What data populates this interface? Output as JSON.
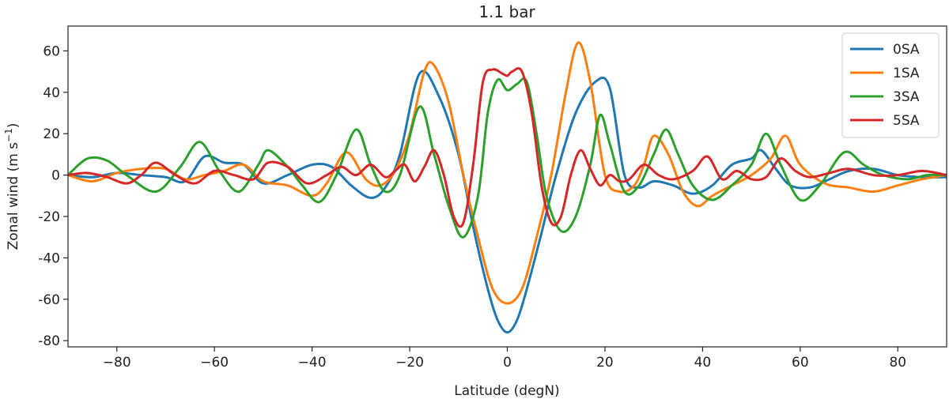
{
  "chart_data": {
    "type": "line",
    "title": "1.1 bar",
    "xlabel": "Latitude (degN)",
    "ylabel_main": "Zonal wind (m s",
    "ylabel_sup": "−1",
    "ylabel_close": ")",
    "xlim": [
      -90,
      90
    ],
    "ylim": [
      -83,
      72
    ],
    "xticks": [
      -80,
      -60,
      -40,
      -20,
      0,
      20,
      40,
      60,
      80
    ],
    "xtick_labels": [
      "−80",
      "−60",
      "−40",
      "−20",
      "0",
      "20",
      "40",
      "60",
      "80"
    ],
    "yticks": [
      -80,
      -60,
      -40,
      -20,
      0,
      20,
      40,
      60
    ],
    "ytick_labels": [
      "-80",
      "-60",
      "-40",
      "-20",
      "0",
      "20",
      "40",
      "60"
    ],
    "grid": false,
    "legend_position": "top-right",
    "series": [
      {
        "name": "0SA",
        "color": "#1f77b4",
        "x": [
          -90,
          -85,
          -80,
          -75,
          -70,
          -66,
          -62,
          -58,
          -54,
          -50,
          -45,
          -40,
          -36,
          -32,
          -28,
          -25,
          -22,
          -18,
          -14,
          -10,
          -7,
          -4,
          -2,
          0,
          2,
          4,
          7,
          10,
          14,
          18,
          21,
          24,
          27,
          30,
          34,
          38,
          42,
          46,
          50,
          52,
          55,
          58,
          62,
          66,
          70,
          75,
          80,
          85,
          90
        ],
        "y": [
          0,
          -1,
          1,
          0,
          -1,
          -3,
          9,
          6,
          5,
          -4,
          0,
          5,
          4,
          -5,
          -11,
          -6,
          10,
          49,
          38,
          10,
          -25,
          -55,
          -70,
          -76,
          -70,
          -55,
          -28,
          0,
          30,
          45,
          42,
          0,
          -6,
          -3,
          -5,
          -9,
          -5,
          5,
          8,
          12,
          3,
          -5,
          -6,
          -2,
          2,
          3,
          0,
          -1,
          -1
        ]
      },
      {
        "name": "1SA",
        "color": "#ff7f0e",
        "x": [
          -90,
          -85,
          -80,
          -75,
          -70,
          -66,
          -62,
          -58,
          -54,
          -50,
          -45,
          -40,
          -37,
          -33,
          -29,
          -26,
          -23,
          -20,
          -17,
          -15,
          -12,
          -9,
          -6,
          -3,
          0,
          3,
          6,
          9,
          12,
          14.5,
          17,
          20,
          23,
          26,
          28,
          30,
          33,
          36,
          39,
          42,
          46,
          50,
          54,
          57,
          60,
          65,
          70,
          75,
          80,
          85,
          90
        ],
        "y": [
          0,
          -3,
          1,
          3,
          3,
          -2,
          0,
          2,
          5,
          -3,
          -5,
          -10,
          -4,
          11,
          -2,
          -5,
          2,
          20,
          50,
          53,
          35,
          0,
          -30,
          -55,
          -62,
          -55,
          -30,
          0,
          40,
          64,
          45,
          0,
          -8,
          -5,
          5,
          19,
          10,
          -8,
          -15,
          -10,
          -5,
          0,
          8,
          19,
          5,
          -4,
          -6,
          -8,
          -5,
          -2,
          0
        ]
      },
      {
        "name": "3SA",
        "color": "#2ca02c",
        "x": [
          -90,
          -86,
          -82,
          -78,
          -72,
          -67,
          -63,
          -59,
          -55,
          -51,
          -49,
          -45,
          -42,
          -38.5,
          -35,
          -31,
          -28,
          -25,
          -22,
          -18,
          -15,
          -12,
          -9,
          -6,
          -4,
          -2,
          0,
          2,
          4,
          6,
          8,
          11,
          14,
          17,
          19,
          21,
          24,
          27,
          30,
          32.5,
          35,
          38,
          42,
          46,
          50,
          53,
          56,
          60,
          64,
          69,
          73,
          77,
          82,
          86,
          90
        ],
        "y": [
          0,
          8,
          7,
          0,
          -8,
          4,
          16,
          2,
          -8,
          5,
          12,
          4,
          -5,
          -13,
          0,
          22,
          5,
          -8,
          0,
          33,
          10,
          -15,
          -30,
          -10,
          30,
          46,
          41,
          44,
          45,
          20,
          -10,
          -27,
          -20,
          5,
          29,
          15,
          -8,
          -5,
          10,
          22,
          10,
          -5,
          -12,
          -5,
          5,
          20,
          5,
          -12,
          -5,
          11,
          5,
          0,
          -2,
          0,
          0
        ]
      },
      {
        "name": "5SA",
        "color": "#d62728",
        "x": [
          -90,
          -86,
          -82,
          -78,
          -75,
          -72,
          -68,
          -64,
          -60,
          -56,
          -52,
          -49,
          -45,
          -41,
          -37,
          -34,
          -31,
          -28,
          -25,
          -23,
          -21,
          -19,
          -17,
          -15,
          -13,
          -11,
          -9,
          -7,
          -5,
          -3,
          -1,
          0,
          1,
          3,
          5,
          7,
          9,
          11,
          13,
          15,
          17,
          19,
          21,
          23,
          25,
          28,
          31,
          34,
          38,
          41,
          44,
          47,
          50,
          53,
          56,
          59,
          62,
          66,
          70,
          75,
          80,
          85,
          90
        ],
        "y": [
          0,
          1,
          -1,
          -4,
          0,
          6,
          0,
          -4,
          2,
          0,
          -2,
          6,
          4,
          -4,
          0,
          4,
          0,
          5,
          -1,
          2,
          5,
          -3,
          4,
          12,
          0,
          -20,
          -23,
          5,
          45,
          51,
          49,
          48,
          50,
          50,
          30,
          -5,
          -23,
          -20,
          0,
          12,
          3,
          -5,
          0,
          -3,
          -2,
          5,
          0,
          -2,
          2,
          9,
          -2,
          2,
          -2,
          -1,
          8,
          2,
          -1,
          1,
          3,
          0,
          0,
          2,
          0
        ]
      }
    ]
  }
}
